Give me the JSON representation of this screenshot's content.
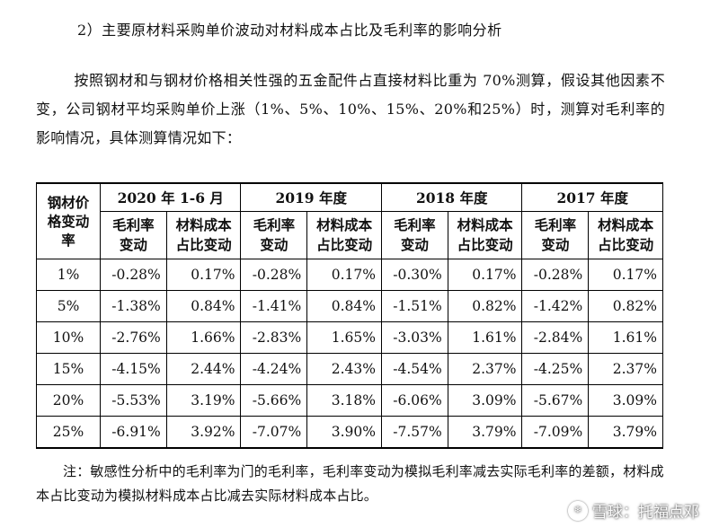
{
  "heading": "2）主要原材料采购单价波动对材料成本占比及毛利率的影响分析",
  "paragraph": "按照钢材和与钢材价格相关性强的五金配件占直接材料比重为 70%测算，假设其他因素不变，公司钢材平均采购单价上涨（1%、5%、10%、15%、20%和25%）时，测算对毛利率的影响情况，具体测算情况如下：",
  "table": {
    "corner_header": "钢材价格变动率",
    "periods": [
      "2020 年 1-6 月",
      "2019 年度",
      "2018 年度",
      "2017 年度"
    ],
    "sub_headers": [
      "毛利率变动",
      "材料成本占比变动"
    ],
    "rows": [
      {
        "rate": "1%",
        "cells": [
          "-0.28%",
          "0.17%",
          "-0.28%",
          "0.17%",
          "-0.30%",
          "0.17%",
          "-0.28%",
          "0.17%"
        ]
      },
      {
        "rate": "5%",
        "cells": [
          "-1.38%",
          "0.84%",
          "-1.41%",
          "0.84%",
          "-1.51%",
          "0.82%",
          "-1.42%",
          "0.82%"
        ]
      },
      {
        "rate": "10%",
        "cells": [
          "-2.76%",
          "1.66%",
          "-2.83%",
          "1.65%",
          "-3.03%",
          "1.61%",
          "-2.84%",
          "1.61%"
        ]
      },
      {
        "rate": "15%",
        "cells": [
          "-4.15%",
          "2.44%",
          "-4.24%",
          "2.43%",
          "-4.54%",
          "2.37%",
          "-4.25%",
          "2.37%"
        ]
      },
      {
        "rate": "20%",
        "cells": [
          "-5.53%",
          "3.19%",
          "-5.66%",
          "3.18%",
          "-6.06%",
          "3.09%",
          "-5.67%",
          "3.09%"
        ]
      },
      {
        "rate": "25%",
        "cells": [
          "-6.91%",
          "3.92%",
          "-7.07%",
          "3.90%",
          "-7.57%",
          "3.79%",
          "-7.09%",
          "3.79%"
        ]
      }
    ]
  },
  "note": "注：敏感性分析中的毛利率为门的毛利率，毛利率变动为模拟毛利率减去实际毛利率的差额，材料成本占比变动为模拟材料成本占比减去实际材料成本占比。",
  "watermark": "雪球：托福点邓"
}
